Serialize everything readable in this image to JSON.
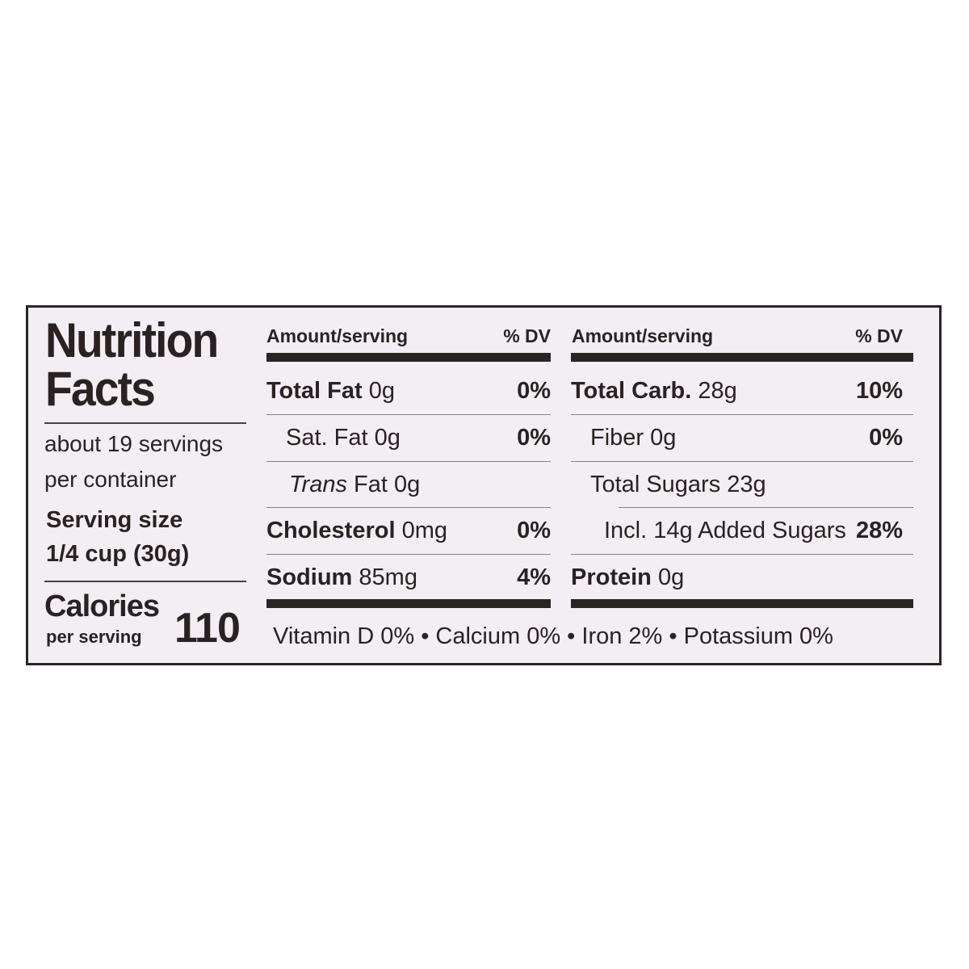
{
  "label": {
    "title_line1": "Nutrition",
    "title_line2": "Facts",
    "servings_line1": "about 19 servings",
    "servings_line2": "per container",
    "serving_size_label": "Serving size",
    "serving_size_value": "1/4 cup (30g)",
    "calories_label": "Calories",
    "calories_sub": "per serving",
    "calories_value": "110",
    "left_table": {
      "header_amount": "Amount/serving",
      "header_dv": "% DV",
      "rows": [
        {
          "name": "Total Fat",
          "amount": "0g",
          "dv": "0%"
        },
        {
          "name": "Sat. Fat",
          "amount": "0g",
          "dv": "0%"
        },
        {
          "name": "Trans",
          "amount": "Fat 0g",
          "dv": ""
        },
        {
          "name": "Cholesterol",
          "amount": "0mg",
          "dv": "0%"
        },
        {
          "name": "Sodium",
          "amount": "85mg",
          "dv": "4%"
        }
      ]
    },
    "right_table": {
      "header_amount": "Amount/serving",
      "header_dv": "% DV",
      "rows": [
        {
          "name": "Total Carb.",
          "amount": "28g",
          "dv": "10%"
        },
        {
          "name": "Fiber",
          "amount": "0g",
          "dv": "0%"
        },
        {
          "name": "Total Sugars",
          "amount": "23g",
          "dv": ""
        },
        {
          "name": "Incl. 14g Added Sugars",
          "amount": "",
          "dv": "28%"
        },
        {
          "name": "Protein",
          "amount": "0g",
          "dv": ""
        }
      ]
    },
    "vitamins": "Vitamin D 0% • Calcium 0% • Iron 2% • Potassium 0%"
  },
  "colors": {
    "ink": "#2a2424",
    "label_background": "#f3eef3",
    "page_background": "#ffffff"
  }
}
